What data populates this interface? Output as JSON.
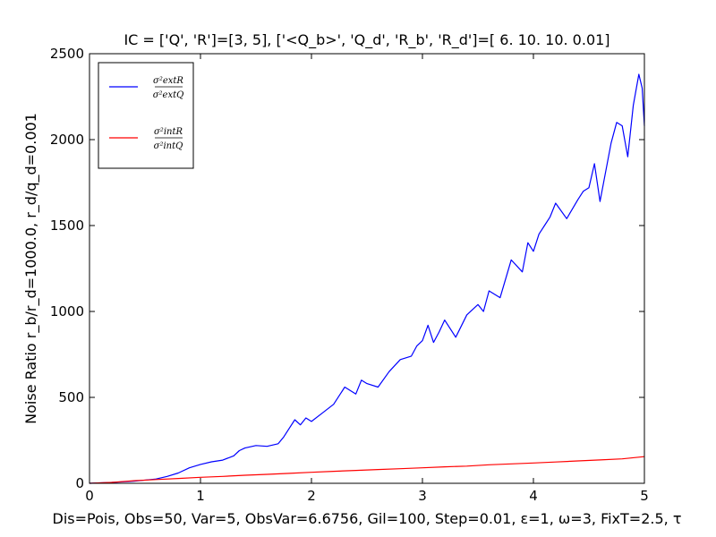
{
  "chart_data": {
    "type": "line",
    "title": "IC = ['Q', 'R']=[3, 5], ['<Q_b>', 'Q_d', 'R_b', 'R_d']=[  6.    10.    10.     0.01]",
    "xlabel": "Dis=Pois, Obs=50, Var=5, ObsVar=6.6756, Gil=100, Step=0.01, ε=1, ω=3, FixT=2.5, τ",
    "ylabel": "Noise Ratio r_b/r_d=1000.0, r_d/q_d=0.001",
    "xlim": [
      0,
      5
    ],
    "ylim": [
      0,
      2500
    ],
    "x_ticks": [
      "0",
      "1",
      "2",
      "3",
      "4",
      "5"
    ],
    "y_ticks": [
      "0",
      "500",
      "1000",
      "1500",
      "2000",
      "2500"
    ],
    "grid": false,
    "legend_position": "top-left",
    "series": [
      {
        "name": "σ²extR / σ²extQ",
        "legend_num": "σ²extR",
        "legend_den": "σ²extQ",
        "color": "#0000ff",
        "x": [
          0,
          0.2,
          0.4,
          0.6,
          0.7,
          0.8,
          0.9,
          1.0,
          1.1,
          1.2,
          1.3,
          1.35,
          1.4,
          1.5,
          1.6,
          1.7,
          1.75,
          1.8,
          1.85,
          1.9,
          1.95,
          2.0,
          2.1,
          2.2,
          2.3,
          2.4,
          2.45,
          2.5,
          2.6,
          2.7,
          2.8,
          2.9,
          2.95,
          3.0,
          3.05,
          3.1,
          3.15,
          3.2,
          3.3,
          3.4,
          3.5,
          3.55,
          3.6,
          3.7,
          3.8,
          3.9,
          3.95,
          4.0,
          4.05,
          4.1,
          4.15,
          4.2,
          4.3,
          4.4,
          4.45,
          4.5,
          4.55,
          4.6,
          4.7,
          4.75,
          4.8,
          4.85,
          4.9,
          4.95,
          4.98,
          5.0
        ],
        "y": [
          0,
          5,
          12,
          25,
          40,
          60,
          90,
          110,
          125,
          135,
          160,
          190,
          205,
          220,
          215,
          230,
          270,
          320,
          370,
          340,
          380,
          360,
          410,
          460,
          560,
          520,
          600,
          580,
          560,
          650,
          720,
          740,
          800,
          830,
          920,
          820,
          880,
          950,
          850,
          980,
          1040,
          1000,
          1120,
          1080,
          1300,
          1230,
          1400,
          1350,
          1450,
          1500,
          1550,
          1630,
          1540,
          1650,
          1700,
          1720,
          1860,
          1640,
          1980,
          2100,
          2080,
          1900,
          2200,
          2380,
          2300,
          2080
        ]
      },
      {
        "name": "σ²intR / σ²intQ",
        "legend_num": "σ²intR",
        "legend_den": "σ²intQ",
        "color": "#ff0000",
        "x": [
          0,
          0.2,
          0.4,
          0.6,
          0.8,
          1.0,
          1.2,
          1.4,
          1.6,
          1.8,
          2.0,
          2.2,
          2.4,
          2.6,
          2.8,
          3.0,
          3.2,
          3.4,
          3.6,
          3.8,
          4.0,
          4.2,
          4.4,
          4.6,
          4.8,
          5.0
        ],
        "y": [
          0,
          5,
          15,
          22,
          28,
          35,
          40,
          47,
          52,
          58,
          64,
          70,
          75,
          80,
          85,
          90,
          96,
          100,
          108,
          113,
          118,
          124,
          130,
          136,
          142,
          155
        ]
      }
    ]
  }
}
